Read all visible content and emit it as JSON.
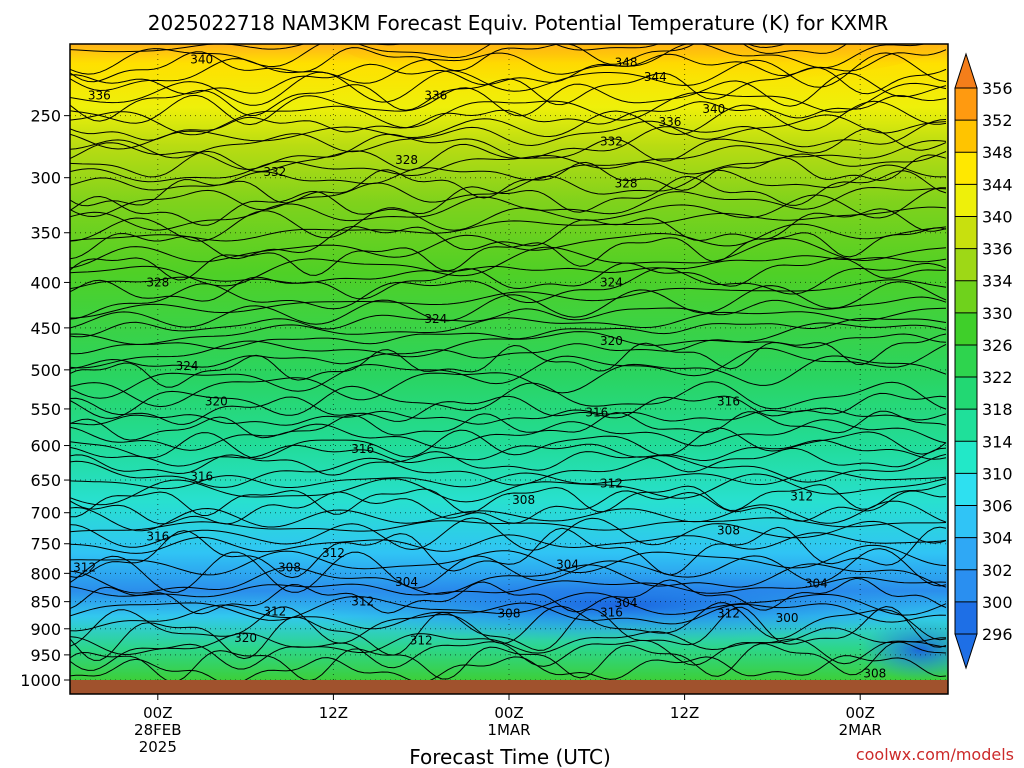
{
  "chart_data": {
    "type": "heatmap",
    "title": "2025022718 NAM3KM Forecast Equiv. Potential Temperature (K) for KXMR",
    "xlabel": "Forecast Time (UTC)",
    "ylabel": "",
    "credit": "coolwx.com/models",
    "x_ticks": [
      {
        "hours": 0,
        "lines": [
          "00Z",
          "28FEB",
          "2025"
        ]
      },
      {
        "hours": 12,
        "lines": [
          "12Z"
        ]
      },
      {
        "hours": 24,
        "lines": [
          "00Z",
          "1MAR"
        ]
      },
      {
        "hours": 36,
        "lines": [
          "12Z"
        ]
      },
      {
        "hours": 48,
        "lines": [
          "00Z",
          "2MAR"
        ]
      }
    ],
    "x_range_hours": [
      -6,
      54
    ],
    "y_ticks": [
      250,
      300,
      350,
      400,
      450,
      500,
      550,
      600,
      650,
      700,
      750,
      800,
      850,
      900,
      950,
      1000
    ],
    "y_range_hpa": [
      200,
      1000
    ],
    "colorbar_levels": [
      296,
      300,
      302,
      304,
      306,
      310,
      314,
      318,
      322,
      326,
      330,
      334,
      336,
      340,
      344,
      348,
      352,
      356
    ],
    "colorbar_colors": [
      "#1e6fe6",
      "#2a8ff0",
      "#2fa8f5",
      "#30c4f6",
      "#2ee0f0",
      "#22e8c8",
      "#1fe09a",
      "#22d873",
      "#2ed44e",
      "#3fcf2a",
      "#6fd21c",
      "#9ed816",
      "#c8e00e",
      "#eef00a",
      "#ffe800",
      "#ffc400",
      "#ff9a10",
      "#f47e1a"
    ],
    "contour_labels": [
      {
        "text": "340",
        "hours": 3,
        "hpa": 210
      },
      {
        "text": "348",
        "hours": 32,
        "hpa": 212
      },
      {
        "text": "344",
        "hours": 34,
        "hpa": 222
      },
      {
        "text": "336",
        "hours": -4,
        "hpa": 235
      },
      {
        "text": "336",
        "hours": 19,
        "hpa": 235
      },
      {
        "text": "340",
        "hours": 38,
        "hpa": 245
      },
      {
        "text": "336",
        "hours": 35,
        "hpa": 255
      },
      {
        "text": "332",
        "hours": 31,
        "hpa": 270
      },
      {
        "text": "328",
        "hours": 17,
        "hpa": 285
      },
      {
        "text": "332",
        "hours": 8,
        "hpa": 295
      },
      {
        "text": "328",
        "hours": 32,
        "hpa": 305
      },
      {
        "text": "328",
        "hours": 0,
        "hpa": 400
      },
      {
        "text": "324",
        "hours": 31,
        "hpa": 400
      },
      {
        "text": "324",
        "hours": 19,
        "hpa": 440
      },
      {
        "text": "320",
        "hours": 31,
        "hpa": 465
      },
      {
        "text": "324",
        "hours": 2,
        "hpa": 495
      },
      {
        "text": "320",
        "hours": 4,
        "hpa": 540
      },
      {
        "text": "316",
        "hours": 30,
        "hpa": 555
      },
      {
        "text": "316",
        "hours": 39,
        "hpa": 540
      },
      {
        "text": "316",
        "hours": 14,
        "hpa": 605
      },
      {
        "text": "316",
        "hours": 3,
        "hpa": 645
      },
      {
        "text": "312",
        "hours": 31,
        "hpa": 655
      },
      {
        "text": "308",
        "hours": 25,
        "hpa": 680
      },
      {
        "text": "312",
        "hours": 44,
        "hpa": 675
      },
      {
        "text": "308",
        "hours": 39,
        "hpa": 728
      },
      {
        "text": "316",
        "hours": 0,
        "hpa": 738
      },
      {
        "text": "312",
        "hours": 12,
        "hpa": 765
      },
      {
        "text": "312",
        "hours": -5,
        "hpa": 790
      },
      {
        "text": "304",
        "hours": 28,
        "hpa": 785
      },
      {
        "text": "308",
        "hours": 9,
        "hpa": 790
      },
      {
        "text": "304",
        "hours": 17,
        "hpa": 815
      },
      {
        "text": "304",
        "hours": 45,
        "hpa": 818
      },
      {
        "text": "312",
        "hours": 14,
        "hpa": 850
      },
      {
        "text": "312",
        "hours": 8,
        "hpa": 868
      },
      {
        "text": "304",
        "hours": 32,
        "hpa": 852
      },
      {
        "text": "308",
        "hours": 24,
        "hpa": 872
      },
      {
        "text": "316",
        "hours": 31,
        "hpa": 870
      },
      {
        "text": "312",
        "hours": 39,
        "hpa": 872
      },
      {
        "text": "300",
        "hours": 43,
        "hpa": 880
      },
      {
        "text": "320",
        "hours": 6,
        "hpa": 917
      },
      {
        "text": "312",
        "hours": 18,
        "hpa": 922
      },
      {
        "text": "308",
        "hours": 49,
        "hpa": 987
      }
    ]
  }
}
